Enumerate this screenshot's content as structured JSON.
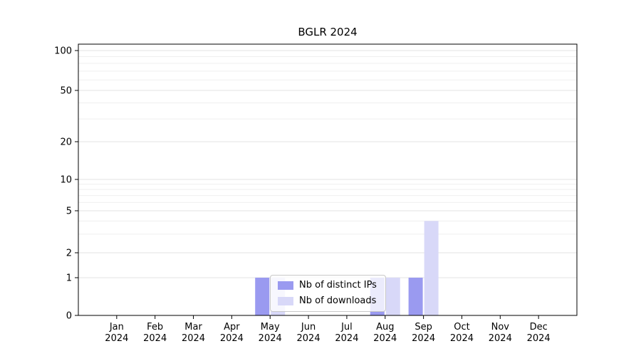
{
  "chart_data": {
    "type": "bar",
    "title": "BGLR 2024",
    "categories": [
      "Jan",
      "Feb",
      "Mar",
      "Apr",
      "May",
      "Jun",
      "Jul",
      "Aug",
      "Sep",
      "Oct",
      "Nov",
      "Dec"
    ],
    "year_label": "2024",
    "series": [
      {
        "name": "Nb of distinct IPs",
        "color": "#9a9af0",
        "values": [
          0,
          0,
          0,
          0,
          1,
          0,
          0,
          1,
          1,
          0,
          0,
          0
        ]
      },
      {
        "name": "Nb of downloads",
        "color": "#d8d8f8",
        "values": [
          0,
          0,
          0,
          0,
          1,
          0,
          0,
          1,
          4,
          0,
          0,
          0
        ]
      }
    ],
    "y_ticks": [
      0,
      1,
      2,
      5,
      10,
      20,
      50,
      100
    ],
    "minor_gridlines": [
      3,
      4,
      6,
      7,
      8,
      9,
      30,
      40,
      60,
      70,
      80,
      90
    ],
    "ylim": [
      0,
      100
    ],
    "scale": "log-like",
    "grid": "on",
    "legend_position": "lower-center-inside",
    "axis_color": "#000000",
    "major_grid_color": "#e3e3e3",
    "minor_grid_color": "#efefef"
  }
}
